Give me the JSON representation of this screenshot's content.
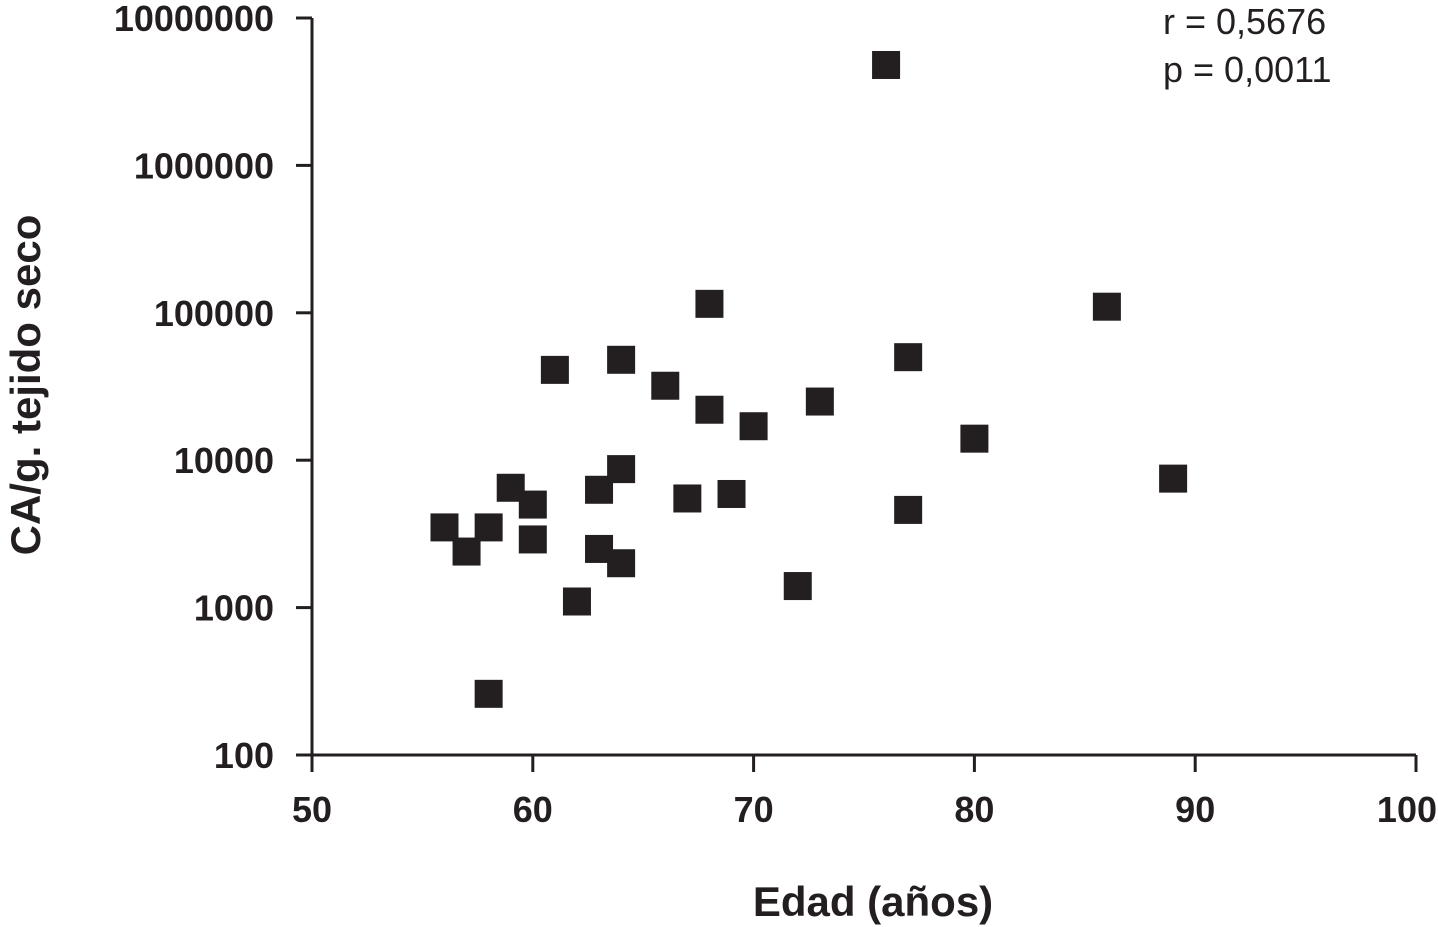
{
  "chart_data": {
    "type": "scatter",
    "xlabel": "Edad (años)",
    "ylabel": "CA/g. tejido seco",
    "xlim": [
      50,
      100
    ],
    "ylim": [
      100,
      10000000
    ],
    "yscale": "log",
    "x_ticks": [
      "50",
      "60",
      "70",
      "80",
      "90",
      "100"
    ],
    "y_ticks": [
      "100",
      "1000",
      "10000",
      "100000",
      "1000000",
      "10000000"
    ],
    "annotations": [
      "r = 0,5676",
      "p = 0,0011"
    ],
    "grid": false,
    "marker": "square",
    "series": [
      {
        "points": [
          {
            "x": 56,
            "y": 3500
          },
          {
            "x": 57,
            "y": 2400
          },
          {
            "x": 58,
            "y": 3500
          },
          {
            "x": 58,
            "y": 260
          },
          {
            "x": 59,
            "y": 6500
          },
          {
            "x": 60,
            "y": 5000
          },
          {
            "x": 60,
            "y": 2900
          },
          {
            "x": 61,
            "y": 41000
          },
          {
            "x": 62,
            "y": 1100
          },
          {
            "x": 63,
            "y": 6300
          },
          {
            "x": 63,
            "y": 2500
          },
          {
            "x": 64,
            "y": 48000
          },
          {
            "x": 64,
            "y": 8700
          },
          {
            "x": 64,
            "y": 2000
          },
          {
            "x": 66,
            "y": 32000
          },
          {
            "x": 67,
            "y": 5500
          },
          {
            "x": 68,
            "y": 115000
          },
          {
            "x": 68,
            "y": 22000
          },
          {
            "x": 69,
            "y": 5900
          },
          {
            "x": 70,
            "y": 17000
          },
          {
            "x": 72,
            "y": 1400
          },
          {
            "x": 73,
            "y": 25000
          },
          {
            "x": 76,
            "y": 4800000
          },
          {
            "x": 77,
            "y": 50000
          },
          {
            "x": 77,
            "y": 4600
          },
          {
            "x": 80,
            "y": 14000
          },
          {
            "x": 86,
            "y": 110000
          },
          {
            "x": 89,
            "y": 7500
          }
        ]
      }
    ]
  }
}
